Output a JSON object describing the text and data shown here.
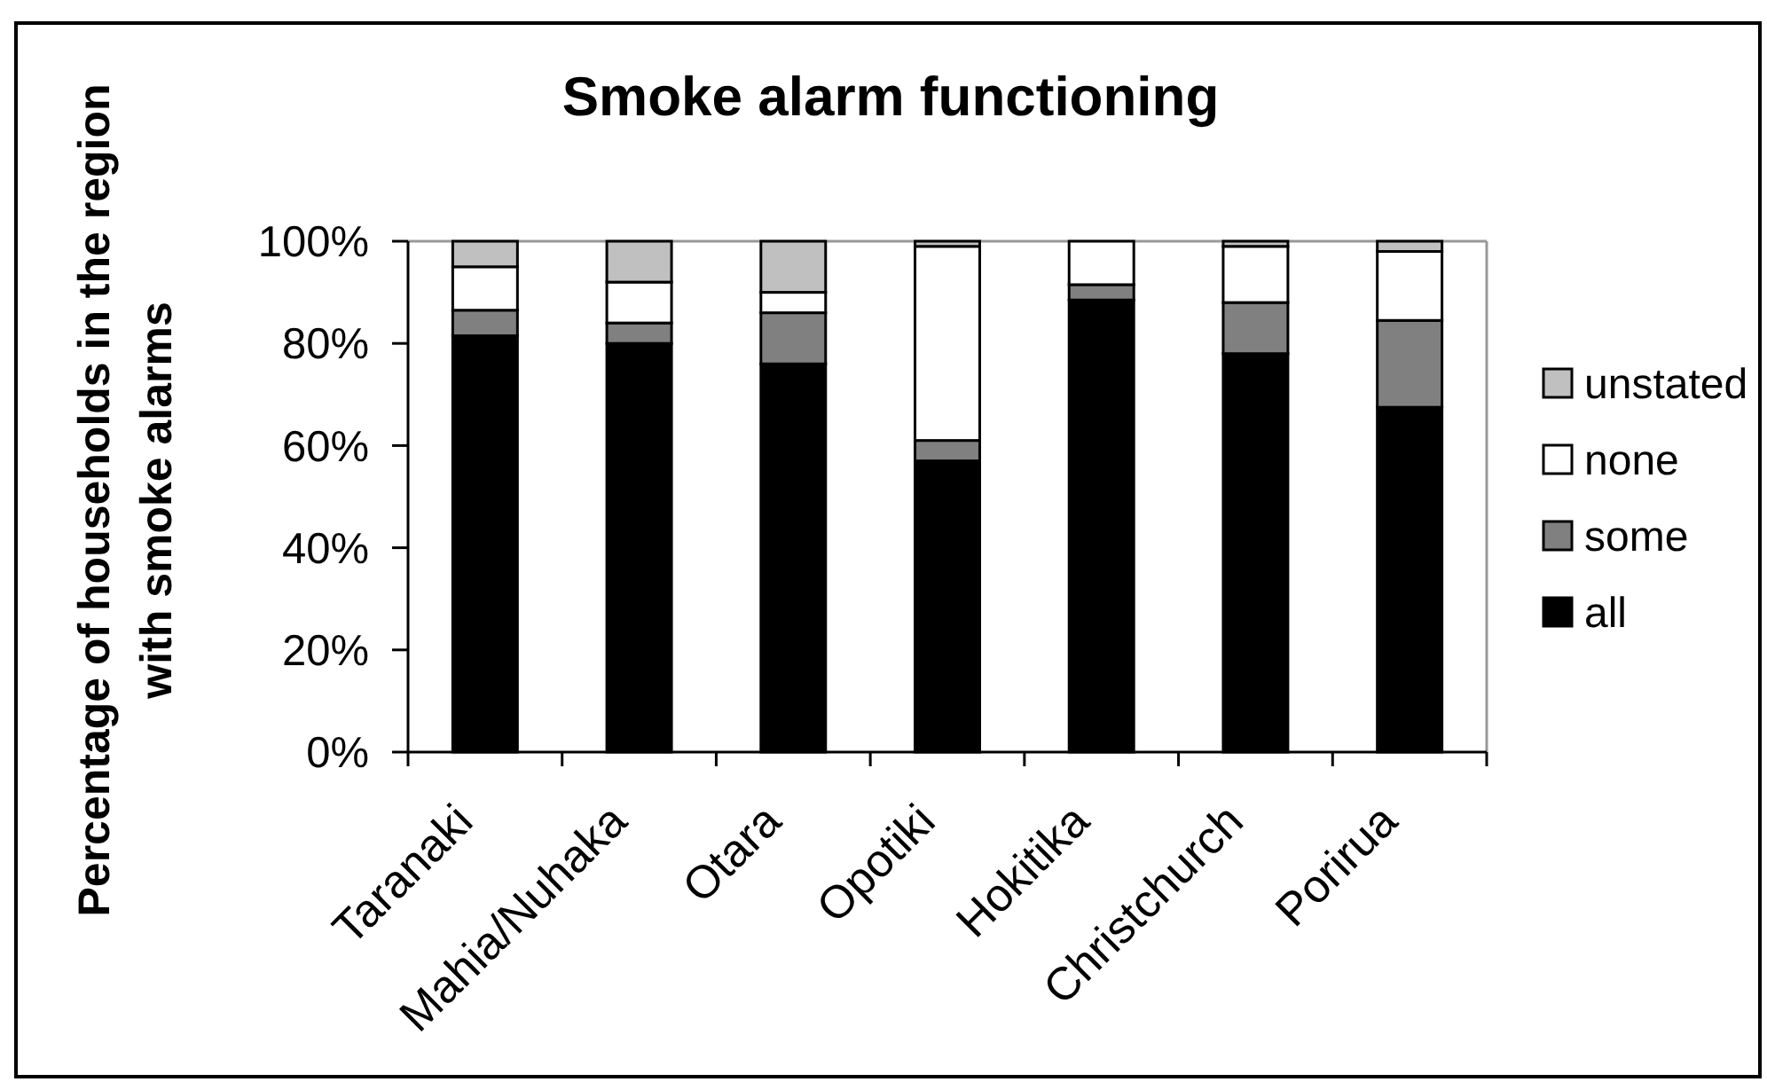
{
  "chart_data": {
    "type": "bar",
    "title": "Smoke alarm functioning",
    "ylabel": "Percentage of households in the region\nwith smoke alarms",
    "categories": [
      "Taranaki",
      "Mahia/Nuhaka",
      "Otara",
      "Opotiki",
      "Hokitika",
      "Christchurch",
      "Porirua"
    ],
    "series": [
      {
        "name": "all",
        "color": "#000000",
        "values": [
          81.5,
          80,
          76,
          57,
          88.5,
          78,
          67.5
        ]
      },
      {
        "name": "some",
        "color": "#808080",
        "values": [
          5,
          4,
          10,
          4,
          3,
          10,
          17
        ]
      },
      {
        "name": "none",
        "color": "#ffffff",
        "values": [
          8.5,
          8,
          4,
          38,
          8.5,
          11,
          13.5
        ]
      },
      {
        "name": "unstated",
        "color": "#c0c0c0",
        "values": [
          5,
          8,
          10,
          1,
          0,
          1,
          2
        ]
      }
    ],
    "stacked": true,
    "ylim": [
      0,
      100
    ],
    "yticks": [
      {
        "value": 0,
        "label": "0%"
      },
      {
        "value": 20,
        "label": "20%"
      },
      {
        "value": 40,
        "label": "40%"
      },
      {
        "value": 60,
        "label": "60%"
      },
      {
        "value": 80,
        "label": "80%"
      },
      {
        "value": 100,
        "label": "100%"
      }
    ],
    "legend": "right"
  }
}
